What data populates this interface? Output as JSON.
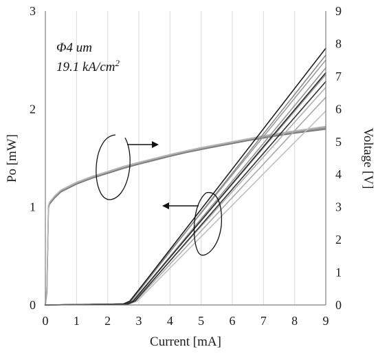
{
  "chart_data": {
    "type": "line",
    "title": "",
    "xlabel": "Current [mA]",
    "ylabel_left": "Po [mW]",
    "ylabel_right": "Voltage [V]",
    "xlim": [
      0,
      9
    ],
    "ylim_left": [
      0,
      3
    ],
    "ylim_right": [
      0,
      9
    ],
    "x_ticks": [
      0,
      1,
      2,
      3,
      4,
      5,
      6,
      7,
      8,
      9
    ],
    "y_left_ticks": [
      0,
      1,
      2,
      3
    ],
    "y_right_ticks": [
      0,
      1,
      2,
      3,
      4,
      5,
      6,
      7,
      8,
      9
    ],
    "grid": {
      "vertical": true,
      "horizontal": false
    },
    "annotations": [
      "Φ4 um",
      "19.1 kA/cm",
      "2"
    ],
    "colors": {
      "light_curves": "#9a9a9a",
      "dark_curves": "#1e1e1e",
      "axes": "#7f7f7f",
      "grid": "#d9d9d9"
    },
    "series": [
      {
        "axis": "right",
        "kind": "voltage",
        "color": "#8c8c8c",
        "points": [
          [
            0,
            0
          ],
          [
            0.05,
            0.5
          ],
          [
            0.1,
            3.0
          ],
          [
            0.13,
            3.1
          ],
          [
            0.3,
            3.3
          ],
          [
            0.5,
            3.48
          ],
          [
            1,
            3.72
          ],
          [
            1.5,
            3.9
          ],
          [
            2,
            4.05
          ],
          [
            2.5,
            4.2
          ],
          [
            3,
            4.33
          ],
          [
            3.5,
            4.45
          ],
          [
            4,
            4.57
          ],
          [
            4.5,
            4.68
          ],
          [
            5,
            4.78
          ],
          [
            5.5,
            4.87
          ],
          [
            6,
            4.96
          ],
          [
            6.5,
            5.05
          ],
          [
            7,
            5.13
          ],
          [
            7.5,
            5.21
          ],
          [
            8,
            5.28
          ],
          [
            8.5,
            5.35
          ],
          [
            9,
            5.42
          ]
        ]
      },
      {
        "axis": "right",
        "kind": "voltage",
        "color": "#a8a8a8",
        "points": [
          [
            0,
            0
          ],
          [
            0.05,
            0.6
          ],
          [
            0.1,
            3.05
          ],
          [
            0.13,
            3.12
          ],
          [
            0.3,
            3.32
          ],
          [
            0.5,
            3.5
          ],
          [
            1,
            3.74
          ],
          [
            1.5,
            3.92
          ],
          [
            2,
            4.07
          ],
          [
            2.5,
            4.22
          ],
          [
            3,
            4.35
          ],
          [
            3.5,
            4.47
          ],
          [
            4,
            4.59
          ],
          [
            4.5,
            4.7
          ],
          [
            5,
            4.8
          ],
          [
            5.5,
            4.89
          ],
          [
            6,
            4.98
          ],
          [
            6.5,
            5.07
          ],
          [
            7,
            5.16
          ],
          [
            7.5,
            5.24
          ],
          [
            8,
            5.31
          ],
          [
            8.5,
            5.38
          ],
          [
            9,
            5.45
          ]
        ]
      },
      {
        "axis": "right",
        "kind": "voltage",
        "color": "#7a7a7a",
        "points": [
          [
            0,
            0
          ],
          [
            0.05,
            0.4
          ],
          [
            0.1,
            2.95
          ],
          [
            0.13,
            3.08
          ],
          [
            0.3,
            3.28
          ],
          [
            0.5,
            3.46
          ],
          [
            1,
            3.7
          ],
          [
            1.5,
            3.88
          ],
          [
            2,
            4.03
          ],
          [
            2.5,
            4.18
          ],
          [
            3,
            4.31
          ],
          [
            3.5,
            4.43
          ],
          [
            4,
            4.55
          ],
          [
            4.5,
            4.66
          ],
          [
            5,
            4.76
          ],
          [
            5.5,
            4.85
          ],
          [
            6,
            4.94
          ],
          [
            6.5,
            5.03
          ],
          [
            7,
            5.11
          ],
          [
            7.5,
            5.19
          ],
          [
            8,
            5.26
          ],
          [
            8.5,
            5.32
          ],
          [
            9,
            5.38
          ]
        ]
      },
      {
        "axis": "right",
        "kind": "voltage",
        "color": "#b5b5b5",
        "points": [
          [
            0,
            0
          ],
          [
            0.05,
            0.55
          ],
          [
            0.1,
            3.02
          ],
          [
            0.13,
            3.14
          ],
          [
            0.3,
            3.34
          ],
          [
            0.5,
            3.52
          ],
          [
            1,
            3.76
          ],
          [
            1.5,
            3.94
          ],
          [
            2,
            4.09
          ],
          [
            2.5,
            4.24
          ],
          [
            3,
            4.37
          ],
          [
            3.5,
            4.49
          ],
          [
            4,
            4.61
          ],
          [
            4.5,
            4.72
          ],
          [
            5,
            4.82
          ],
          [
            5.5,
            4.91
          ],
          [
            6,
            5.0
          ],
          [
            6.5,
            5.09
          ],
          [
            7,
            5.18
          ],
          [
            7.5,
            5.26
          ],
          [
            8,
            5.33
          ],
          [
            8.5,
            5.4
          ],
          [
            9,
            5.47
          ]
        ]
      },
      {
        "axis": "left",
        "kind": "power",
        "color": "#9a9a9a",
        "points": [
          [
            0,
            0
          ],
          [
            2.5,
            0.01
          ],
          [
            2.7,
            0.04
          ],
          [
            9,
            2.5
          ]
        ]
      },
      {
        "axis": "left",
        "kind": "power",
        "color": "#b0b0b0",
        "points": [
          [
            0,
            0
          ],
          [
            2.6,
            0.01
          ],
          [
            2.85,
            0.04
          ],
          [
            9,
            2.22
          ]
        ]
      },
      {
        "axis": "left",
        "kind": "power",
        "color": "#a0a0a0",
        "points": [
          [
            0,
            0
          ],
          [
            2.6,
            0.01
          ],
          [
            2.8,
            0.04
          ],
          [
            9,
            2.35
          ]
        ]
      },
      {
        "axis": "left",
        "kind": "power",
        "color": "#c0c0c0",
        "points": [
          [
            0,
            0
          ],
          [
            2.7,
            0.01
          ],
          [
            2.95,
            0.04
          ],
          [
            9,
            1.98
          ]
        ]
      },
      {
        "axis": "left",
        "kind": "power",
        "color": "#8a8a8a",
        "points": [
          [
            0,
            0
          ],
          [
            2.55,
            0.01
          ],
          [
            2.75,
            0.04
          ],
          [
            9,
            2.55
          ]
        ]
      },
      {
        "axis": "left",
        "kind": "power",
        "color": "#aaaaaa",
        "points": [
          [
            0,
            0
          ],
          [
            2.65,
            0.01
          ],
          [
            2.9,
            0.04
          ],
          [
            9,
            2.12
          ]
        ]
      },
      {
        "axis": "left",
        "kind": "power",
        "color": "#959595",
        "points": [
          [
            0,
            0
          ],
          [
            2.6,
            0.01
          ],
          [
            2.82,
            0.04
          ],
          [
            9,
            2.42
          ]
        ]
      },
      {
        "axis": "left",
        "kind": "power",
        "color": "#1e1e1e",
        "points": [
          [
            0,
            0
          ],
          [
            2.5,
            0.01
          ],
          [
            2.72,
            0.04
          ],
          [
            9,
            2.62
          ]
        ]
      },
      {
        "axis": "left",
        "kind": "power",
        "color": "#2a2a2a",
        "points": [
          [
            0,
            0
          ],
          [
            2.6,
            0.01
          ],
          [
            2.82,
            0.04
          ],
          [
            9,
            2.37
          ]
        ]
      },
      {
        "axis": "left",
        "kind": "power",
        "color": "#333333",
        "points": [
          [
            0,
            0
          ],
          [
            2.65,
            0.01
          ],
          [
            2.88,
            0.04
          ],
          [
            9,
            2.28
          ]
        ]
      }
    ]
  }
}
